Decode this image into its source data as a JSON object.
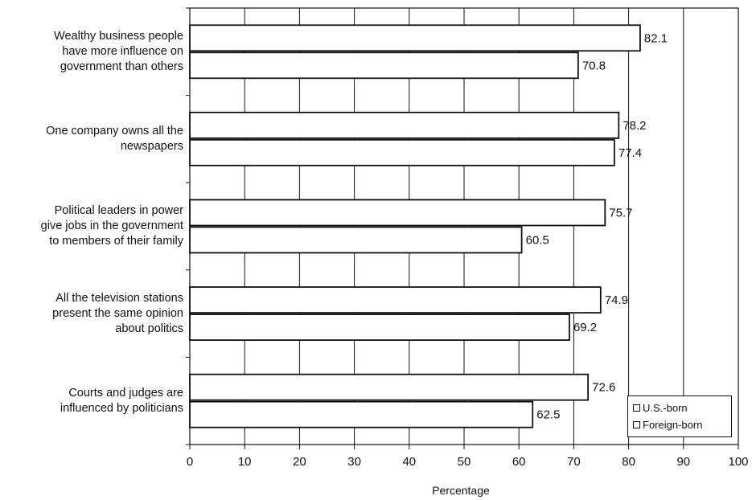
{
  "chart_data": {
    "type": "bar",
    "orientation": "horizontal",
    "title": "",
    "xlabel": "Percentage",
    "ylabel": "",
    "xlim": [
      0,
      100
    ],
    "xticks": [
      0,
      10,
      20,
      30,
      40,
      50,
      60,
      70,
      80,
      90,
      100
    ],
    "grid": "vertical",
    "legend_position": "bottom-right",
    "categories": [
      "Wealthy business people\nhave more influence on\ngovernment than others",
      "One company owns all the\nnewspapers",
      "Political leaders in power\ngive jobs in the government\nto members of their family",
      "All the television stations\npresent the same opinion\nabout politics",
      "Courts and judges are\ninfluenced by politicians"
    ],
    "series": [
      {
        "name": "U.S.-born",
        "values": [
          82.1,
          78.2,
          75.7,
          74.9,
          72.6
        ],
        "value_labels": [
          "82.1",
          "78.2",
          "75.7",
          "74.9",
          "72.6"
        ],
        "color": "#ffffff"
      },
      {
        "name": "Foreign-born",
        "values": [
          70.8,
          77.4,
          60.5,
          69.2,
          62.5
        ],
        "value_labels": [
          "70.8",
          "77.4",
          "60.5",
          "69.2",
          "62.5"
        ],
        "color": "#ffffff"
      }
    ],
    "legend": [
      "U.S.-born",
      "Foreign-born"
    ]
  }
}
